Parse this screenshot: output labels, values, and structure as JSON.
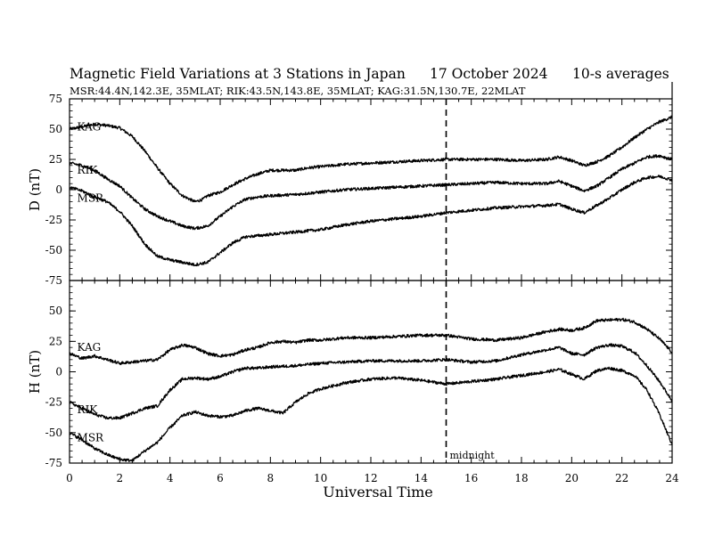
{
  "header": {
    "title": "Magnetic Field Variations at 3 Stations in Japan",
    "date": "17 October 2024",
    "averaging": "10-s averages",
    "stations_line": "MSR:44.4N,142.3E, 35MLAT;  RIK:43.5N,143.8E, 35MLAT;  KAG:31.5N,130.7E, 22MLAT"
  },
  "chart_data": {
    "type": "line",
    "xlabel": "Universal Time",
    "xlim": [
      0,
      24
    ],
    "x_ticks": [
      0,
      2,
      4,
      6,
      8,
      10,
      12,
      14,
      16,
      18,
      20,
      22,
      24
    ],
    "annotation": {
      "x": 15,
      "label": "midnight",
      "style": "dashed"
    },
    "panels": [
      {
        "id": "D",
        "ylabel": "D (nT)",
        "ylim": [
          -75,
          75
        ],
        "y_ticks": [
          -75,
          -50,
          -25,
          0,
          25,
          50,
          75
        ],
        "series": [
          {
            "name": "KAG",
            "points": [
              [
                0,
                50
              ],
              [
                0.5,
                52
              ],
              [
                1,
                54
              ],
              [
                1.5,
                53
              ],
              [
                2,
                51
              ],
              [
                2.5,
                44
              ],
              [
                3,
                32
              ],
              [
                3.5,
                18
              ],
              [
                4,
                5
              ],
              [
                4.5,
                -5
              ],
              [
                5,
                -10
              ],
              [
                5.3,
                -8
              ],
              [
                5.5,
                -5
              ],
              [
                6,
                -2
              ],
              [
                6.5,
                4
              ],
              [
                7,
                9
              ],
              [
                7.5,
                13
              ],
              [
                8,
                16
              ],
              [
                8.5,
                16
              ],
              [
                9,
                16
              ],
              [
                9.5,
                18
              ],
              [
                10,
                19
              ],
              [
                11,
                21
              ],
              [
                12,
                22
              ],
              [
                13,
                23
              ],
              [
                14,
                24
              ],
              [
                15,
                25
              ],
              [
                16,
                25
              ],
              [
                17,
                25
              ],
              [
                18,
                24
              ],
              [
                19,
                25
              ],
              [
                19.5,
                27
              ],
              [
                20,
                24
              ],
              [
                20.5,
                20
              ],
              [
                21,
                23
              ],
              [
                21.5,
                28
              ],
              [
                22,
                35
              ],
              [
                22.5,
                43
              ],
              [
                23,
                50
              ],
              [
                23.5,
                56
              ],
              [
                24,
                60
              ]
            ]
          },
          {
            "name": "RIK",
            "points": [
              [
                0,
                22
              ],
              [
                0.5,
                20
              ],
              [
                1,
                16
              ],
              [
                1.5,
                9
              ],
              [
                2,
                3
              ],
              [
                2.5,
                -7
              ],
              [
                3,
                -16
              ],
              [
                3.5,
                -22
              ],
              [
                4,
                -26
              ],
              [
                4.5,
                -30
              ],
              [
                5,
                -32
              ],
              [
                5.5,
                -30
              ],
              [
                6,
                -22
              ],
              [
                6.5,
                -14
              ],
              [
                7,
                -8
              ],
              [
                7.5,
                -6
              ],
              [
                8,
                -5
              ],
              [
                9,
                -4
              ],
              [
                10,
                -2
              ],
              [
                11,
                0
              ],
              [
                12,
                1
              ],
              [
                13,
                2
              ],
              [
                14,
                3
              ],
              [
                15,
                4
              ],
              [
                16,
                5
              ],
              [
                17,
                6
              ],
              [
                18,
                5
              ],
              [
                19,
                5
              ],
              [
                19.5,
                7
              ],
              [
                20,
                3
              ],
              [
                20.5,
                -1
              ],
              [
                21,
                3
              ],
              [
                21.5,
                10
              ],
              [
                22,
                17
              ],
              [
                22.5,
                22
              ],
              [
                23,
                27
              ],
              [
                23.5,
                28
              ],
              [
                24,
                25
              ]
            ]
          },
          {
            "name": "MSR",
            "points": [
              [
                0,
                2
              ],
              [
                0.5,
                -1
              ],
              [
                1,
                -6
              ],
              [
                1.5,
                -10
              ],
              [
                2,
                -18
              ],
              [
                2.5,
                -30
              ],
              [
                3,
                -45
              ],
              [
                3.5,
                -55
              ],
              [
                4,
                -58
              ],
              [
                4.5,
                -60
              ],
              [
                5,
                -62
              ],
              [
                5.5,
                -60
              ],
              [
                6,
                -52
              ],
              [
                6.5,
                -44
              ],
              [
                7,
                -39
              ],
              [
                7.5,
                -38
              ],
              [
                8,
                -37
              ],
              [
                9,
                -35
              ],
              [
                10,
                -33
              ],
              [
                11,
                -29
              ],
              [
                12,
                -26
              ],
              [
                13,
                -24
              ],
              [
                14,
                -22
              ],
              [
                15,
                -19
              ],
              [
                16,
                -17
              ],
              [
                17,
                -15
              ],
              [
                18,
                -14
              ],
              [
                19,
                -13
              ],
              [
                19.5,
                -12
              ],
              [
                20,
                -16
              ],
              [
                20.5,
                -19
              ],
              [
                21,
                -13
              ],
              [
                21.5,
                -7
              ],
              [
                22,
                0
              ],
              [
                22.5,
                6
              ],
              [
                23,
                10
              ],
              [
                23.5,
                11
              ],
              [
                24,
                8
              ]
            ]
          }
        ]
      },
      {
        "id": "H",
        "ylabel": "H (nT)",
        "ylim": [
          -75,
          75
        ],
        "y_ticks": [
          -75,
          -50,
          -25,
          0,
          25,
          50
        ],
        "series": [
          {
            "name": "KAG",
            "points": [
              [
                0,
                15
              ],
              [
                0.5,
                11
              ],
              [
                1,
                13
              ],
              [
                1.5,
                10
              ],
              [
                2,
                7
              ],
              [
                2.5,
                8
              ],
              [
                3,
                9
              ],
              [
                3.5,
                10
              ],
              [
                4,
                18
              ],
              [
                4.5,
                22
              ],
              [
                5,
                20
              ],
              [
                5.5,
                15
              ],
              [
                6,
                13
              ],
              [
                6.5,
                14
              ],
              [
                7,
                18
              ],
              [
                7.5,
                20
              ],
              [
                8,
                24
              ],
              [
                8.5,
                25
              ],
              [
                9,
                24
              ],
              [
                9.5,
                26
              ],
              [
                10,
                26
              ],
              [
                11,
                28
              ],
              [
                12,
                28
              ],
              [
                13,
                29
              ],
              [
                14,
                30
              ],
              [
                15,
                30
              ],
              [
                16,
                27
              ],
              [
                17,
                26
              ],
              [
                18,
                28
              ],
              [
                19,
                33
              ],
              [
                19.5,
                35
              ],
              [
                20,
                34
              ],
              [
                20.5,
                36
              ],
              [
                21,
                42
              ],
              [
                22,
                43
              ],
              [
                22.5,
                41
              ],
              [
                23,
                35
              ],
              [
                23.5,
                27
              ],
              [
                24,
                16
              ]
            ]
          },
          {
            "name": "RIK",
            "points": [
              [
                0,
                -25
              ],
              [
                0.5,
                -30
              ],
              [
                1,
                -35
              ],
              [
                1.5,
                -38
              ],
              [
                2,
                -38
              ],
              [
                2.5,
                -34
              ],
              [
                3,
                -30
              ],
              [
                3.5,
                -28
              ],
              [
                4,
                -15
              ],
              [
                4.5,
                -6
              ],
              [
                5,
                -5
              ],
              [
                5.5,
                -6
              ],
              [
                6,
                -4
              ],
              [
                6.5,
                0
              ],
              [
                7,
                3
              ],
              [
                7.5,
                3
              ],
              [
                8,
                4
              ],
              [
                9,
                5
              ],
              [
                10,
                7
              ],
              [
                11,
                8
              ],
              [
                12,
                9
              ],
              [
                13,
                9
              ],
              [
                14,
                9
              ],
              [
                15,
                10
              ],
              [
                16,
                8
              ],
              [
                17,
                9
              ],
              [
                18,
                14
              ],
              [
                19,
                18
              ],
              [
                19.5,
                20
              ],
              [
                20,
                15
              ],
              [
                20.5,
                14
              ],
              [
                21,
                20
              ],
              [
                21.5,
                22
              ],
              [
                22,
                21
              ],
              [
                22.5,
                16
              ],
              [
                23,
                5
              ],
              [
                23.5,
                -8
              ],
              [
                24,
                -24
              ]
            ]
          },
          {
            "name": "MSR",
            "points": [
              [
                0,
                -50
              ],
              [
                0.5,
                -56
              ],
              [
                1,
                -63
              ],
              [
                1.5,
                -68
              ],
              [
                2,
                -72
              ],
              [
                2.5,
                -73
              ],
              [
                3,
                -65
              ],
              [
                3.5,
                -58
              ],
              [
                4,
                -46
              ],
              [
                4.5,
                -36
              ],
              [
                5,
                -33
              ],
              [
                5.5,
                -36
              ],
              [
                6,
                -37
              ],
              [
                6.5,
                -36
              ],
              [
                7,
                -32
              ],
              [
                7.5,
                -30
              ],
              [
                8,
                -32
              ],
              [
                8.5,
                -34
              ],
              [
                9,
                -25
              ],
              [
                9.5,
                -18
              ],
              [
                10,
                -14
              ],
              [
                11,
                -9
              ],
              [
                12,
                -6
              ],
              [
                13,
                -5
              ],
              [
                14,
                -7
              ],
              [
                15,
                -10
              ],
              [
                16,
                -8
              ],
              [
                17,
                -6
              ],
              [
                18,
                -3
              ],
              [
                19,
                0
              ],
              [
                19.5,
                2
              ],
              [
                20,
                -2
              ],
              [
                20.5,
                -6
              ],
              [
                21,
                1
              ],
              [
                21.5,
                3
              ],
              [
                22,
                1
              ],
              [
                22.5,
                -3
              ],
              [
                23,
                -15
              ],
              [
                23.5,
                -35
              ],
              [
                24,
                -60
              ]
            ]
          }
        ]
      }
    ]
  },
  "labels": {
    "D": [
      {
        "text": "KAG",
        "x": 0.8,
        "y": 52
      },
      {
        "text": "RIK",
        "x": 0.8,
        "y": 16
      },
      {
        "text": "MSR",
        "x": 0.8,
        "y": -7
      }
    ],
    "H": [
      {
        "text": "KAG",
        "x": 0.8,
        "y": 20
      },
      {
        "text": "RIK",
        "x": 0.8,
        "y": -31
      },
      {
        "text": "MSR",
        "x": 0.8,
        "y": -54
      }
    ]
  }
}
